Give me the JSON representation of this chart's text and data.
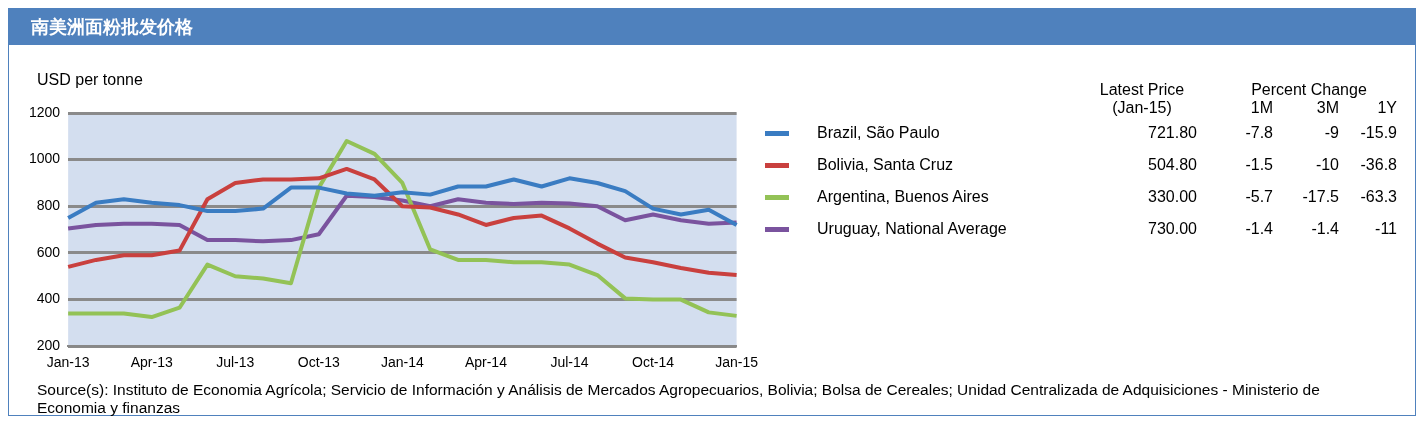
{
  "chart_data": {
    "type": "line",
    "title": "南美洲面粉批发价格",
    "ylabel": "USD per tonne",
    "categories": [
      "Jan-13",
      null,
      null,
      "Apr-13",
      null,
      null,
      "Jul-13",
      null,
      null,
      "Oct-13",
      null,
      null,
      "Jan-14",
      null,
      null,
      "Apr-14",
      null,
      null,
      "Jul-14",
      null,
      null,
      "Oct-14",
      null,
      null,
      "Jan-15"
    ],
    "series": [
      {
        "name": "Brazil, São Paulo",
        "color": "#3a7cc2",
        "values": [
          750,
          815,
          830,
          815,
          805,
          780,
          780,
          790,
          880,
          880,
          855,
          845,
          860,
          850,
          885,
          885,
          915,
          885,
          920,
          900,
          865,
          790,
          765,
          785,
          720
        ]
      },
      {
        "name": "Bolivia, Santa Cruz",
        "color": "#c9403e",
        "values": [
          540,
          570,
          590,
          590,
          610,
          830,
          900,
          915,
          915,
          920,
          960,
          915,
          800,
          795,
          765,
          720,
          750,
          760,
          705,
          640,
          580,
          560,
          535,
          515,
          505
        ]
      },
      {
        "name": "Argentina, Buenos Aires",
        "color": "#93c256",
        "values": [
          340,
          340,
          340,
          325,
          365,
          550,
          500,
          490,
          470,
          880,
          1080,
          1025,
          900,
          615,
          570,
          570,
          560,
          560,
          550,
          505,
          405,
          400,
          400,
          345,
          330
        ]
      },
      {
        "name": "Uruguay, National Average",
        "color": "#7a539e",
        "values": [
          705,
          720,
          725,
          725,
          720,
          655,
          655,
          650,
          655,
          680,
          845,
          840,
          825,
          800,
          830,
          815,
          810,
          815,
          812,
          800,
          740,
          765,
          740,
          725,
          730
        ]
      }
    ],
    "ylim": [
      200,
      1200
    ],
    "yticks": [
      200,
      400,
      600,
      800,
      1000,
      1200
    ],
    "grid": "y",
    "legend": "right",
    "marker": "none",
    "line_style": "solid",
    "annotations": [
      "Latest Price",
      "(Jan-15)",
      "Percent Change",
      "1M",
      "3M",
      "1Y",
      "721.80",
      "-7.8",
      "-9",
      "-15.9",
      "504.80",
      "-1.5",
      "-10",
      "-36.8",
      "330.00",
      "-5.7",
      "-17.5",
      "-63.3",
      "730.00",
      "-1.4",
      "-1.4",
      "-11",
      "Source(s): Instituto de Economia Agrícola; Servicio de Información y Análisis de Mercados Agropecuarios, Bolivia; Bolsa de Cereales; Unidad Centralizada de Adquisiciones - Ministerio de Economia y finanzas"
    ]
  }
}
